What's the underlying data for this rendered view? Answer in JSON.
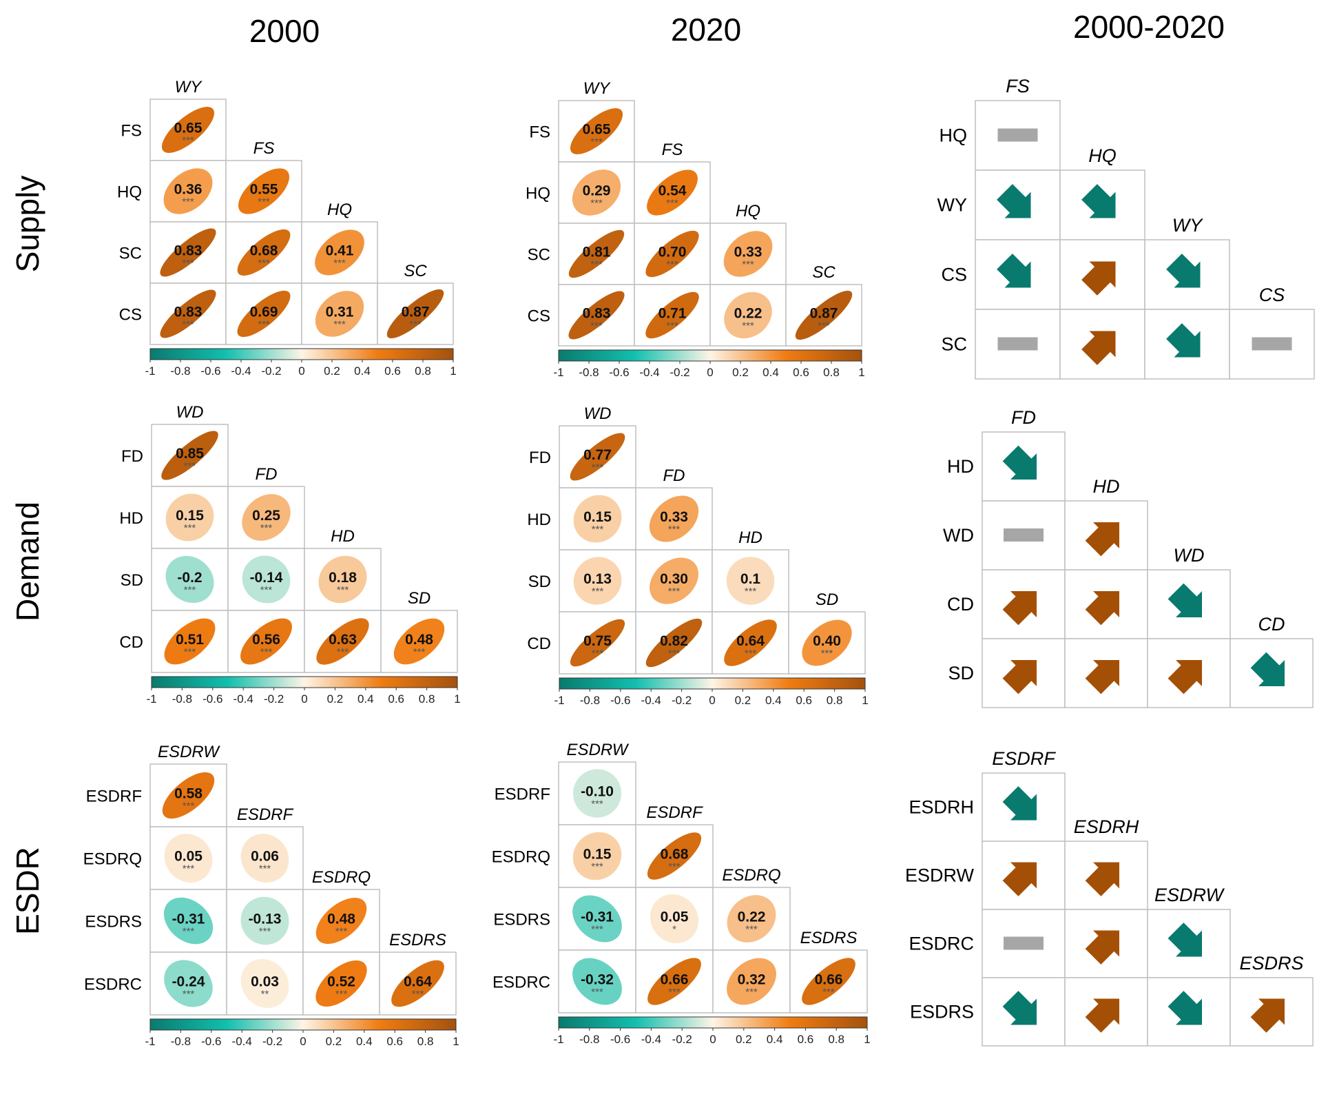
{
  "column_titles": [
    "2000",
    "2020",
    "2000-2020"
  ],
  "row_titles": [
    "Supply",
    "Demand",
    "ESDR"
  ],
  "colors": {
    "negative_strong": "#0a7a6e",
    "negative_mid": "#12bfae",
    "neutral": "#fdf4e6",
    "positive_mid": "#f07c12",
    "positive_strong": "#a4520e",
    "arrow_increase": "#a44f06",
    "arrow_decrease": "#087a6e",
    "no_change": "#a6a6a6",
    "grid_border": "#bfbfbf"
  },
  "colorbar": {
    "range": [
      -1,
      1
    ],
    "ticks": [
      "-1",
      "-0.8",
      "-0.6",
      "-0.4",
      "-0.2",
      "0",
      "0.2",
      "0.4",
      "0.6",
      "0.8",
      "1"
    ]
  },
  "chart_data": [
    {
      "type": "heatmap",
      "title": "2000",
      "group": "Supply",
      "col_vars": [
        "WY",
        "FS",
        "HQ",
        "SC"
      ],
      "row_vars": [
        "FS",
        "HQ",
        "SC",
        "CS"
      ],
      "cells": [
        [
          {
            "r": 0.65,
            "sig": "***"
          }
        ],
        [
          {
            "r": 0.36,
            "sig": "***"
          },
          {
            "r": 0.55,
            "sig": "***"
          }
        ],
        [
          {
            "r": 0.83,
            "sig": "***"
          },
          {
            "r": 0.68,
            "sig": "***"
          },
          {
            "r": 0.41,
            "sig": "***"
          }
        ],
        [
          {
            "r": 0.83,
            "sig": "***"
          },
          {
            "r": 0.69,
            "sig": "***"
          },
          {
            "r": 0.31,
            "sig": "***"
          },
          {
            "r": 0.87,
            "sig": "***"
          }
        ]
      ],
      "labels": [
        [
          "0.65"
        ],
        [
          "0.36",
          "0.55"
        ],
        [
          "0.83",
          "0.68",
          "0.41"
        ],
        [
          "0.83",
          "0.69",
          "0.31",
          "0.87"
        ]
      ]
    },
    {
      "type": "heatmap",
      "title": "2020",
      "group": "Supply",
      "col_vars": [
        "WY",
        "FS",
        "HQ",
        "SC"
      ],
      "row_vars": [
        "FS",
        "HQ",
        "SC",
        "CS"
      ],
      "cells": [
        [
          {
            "r": 0.65,
            "sig": "***"
          }
        ],
        [
          {
            "r": 0.29,
            "sig": "***"
          },
          {
            "r": 0.54,
            "sig": "***"
          }
        ],
        [
          {
            "r": 0.81,
            "sig": "***"
          },
          {
            "r": 0.7,
            "sig": "***"
          },
          {
            "r": 0.33,
            "sig": "***"
          }
        ],
        [
          {
            "r": 0.83,
            "sig": "***"
          },
          {
            "r": 0.71,
            "sig": "***"
          },
          {
            "r": 0.22,
            "sig": "***"
          },
          {
            "r": 0.87,
            "sig": "***"
          }
        ]
      ],
      "labels": [
        [
          "0.65"
        ],
        [
          "0.29",
          "0.54"
        ],
        [
          "0.81",
          "0.70",
          "0.33"
        ],
        [
          "0.83",
          "0.71",
          "0.22",
          "0.87"
        ]
      ]
    },
    {
      "type": "table",
      "title": "2000-2020",
      "group": "Supply",
      "col_vars": [
        "FS",
        "HQ",
        "WY",
        "CS"
      ],
      "row_vars": [
        "HQ",
        "WY",
        "CS",
        "SC"
      ],
      "trend": [
        [
          "none"
        ],
        [
          "down",
          "down"
        ],
        [
          "down",
          "up",
          "down"
        ],
        [
          "none",
          "up",
          "down",
          "none"
        ]
      ]
    },
    {
      "type": "heatmap",
      "title": "2000",
      "group": "Demand",
      "col_vars": [
        "WD",
        "FD",
        "HD",
        "SD"
      ],
      "row_vars": [
        "FD",
        "HD",
        "SD",
        "CD"
      ],
      "cells": [
        [
          {
            "r": 0.85,
            "sig": "***"
          }
        ],
        [
          {
            "r": 0.15,
            "sig": "***"
          },
          {
            "r": 0.25,
            "sig": "***"
          }
        ],
        [
          {
            "r": -0.2,
            "sig": "***"
          },
          {
            "r": -0.14,
            "sig": "***"
          },
          {
            "r": 0.18,
            "sig": "***"
          }
        ],
        [
          {
            "r": 0.51,
            "sig": "***"
          },
          {
            "r": 0.56,
            "sig": "***"
          },
          {
            "r": 0.63,
            "sig": "***"
          },
          {
            "r": 0.48,
            "sig": "***"
          }
        ]
      ],
      "labels": [
        [
          "0.85"
        ],
        [
          "0.15",
          "0.25"
        ],
        [
          "-0.2",
          "-0.14",
          "0.18"
        ],
        [
          "0.51",
          "0.56",
          "0.63",
          "0.48"
        ]
      ]
    },
    {
      "type": "heatmap",
      "title": "2020",
      "group": "Demand",
      "col_vars": [
        "WD",
        "FD",
        "HD",
        "SD"
      ],
      "row_vars": [
        "FD",
        "HD",
        "SD",
        "CD"
      ],
      "cells": [
        [
          {
            "r": 0.77,
            "sig": "***"
          }
        ],
        [
          {
            "r": 0.15,
            "sig": "***"
          },
          {
            "r": 0.33,
            "sig": "***"
          }
        ],
        [
          {
            "r": 0.13,
            "sig": "***"
          },
          {
            "r": 0.3,
            "sig": "***"
          },
          {
            "r": 0.1,
            "sig": "***"
          }
        ],
        [
          {
            "r": 0.75,
            "sig": "***"
          },
          {
            "r": 0.82,
            "sig": "***"
          },
          {
            "r": 0.64,
            "sig": "***"
          },
          {
            "r": 0.4,
            "sig": "***"
          }
        ]
      ],
      "labels": [
        [
          "0.77"
        ],
        [
          "0.15",
          "0.33"
        ],
        [
          "0.13",
          "0.30",
          "0.1"
        ],
        [
          "0.75",
          "0.82",
          "0.64",
          "0.40"
        ]
      ]
    },
    {
      "type": "table",
      "title": "2000-2020",
      "group": "Demand",
      "col_vars": [
        "FD",
        "HD",
        "WD",
        "CD"
      ],
      "row_vars": [
        "HD",
        "WD",
        "CD",
        "SD"
      ],
      "trend": [
        [
          "down"
        ],
        [
          "none",
          "up"
        ],
        [
          "up",
          "up",
          "down"
        ],
        [
          "up",
          "up",
          "up",
          "down"
        ]
      ]
    },
    {
      "type": "heatmap",
      "title": "2000",
      "group": "ESDR",
      "col_vars": [
        "ESDRW",
        "ESDRF",
        "ESDRQ",
        "ESDRS"
      ],
      "row_vars": [
        "ESDRF",
        "ESDRQ",
        "ESDRS",
        "ESDRC"
      ],
      "cells": [
        [
          {
            "r": 0.58,
            "sig": "***"
          }
        ],
        [
          {
            "r": 0.05,
            "sig": "***"
          },
          {
            "r": 0.06,
            "sig": "***"
          }
        ],
        [
          {
            "r": -0.31,
            "sig": "***"
          },
          {
            "r": -0.13,
            "sig": "***"
          },
          {
            "r": 0.48,
            "sig": "***"
          }
        ],
        [
          {
            "r": -0.24,
            "sig": "***"
          },
          {
            "r": 0.03,
            "sig": "**"
          },
          {
            "r": 0.52,
            "sig": "***"
          },
          {
            "r": 0.64,
            "sig": "***"
          }
        ]
      ],
      "labels": [
        [
          "0.58"
        ],
        [
          "0.05",
          "0.06"
        ],
        [
          "-0.31",
          "-0.13",
          "0.48"
        ],
        [
          "-0.24",
          "0.03",
          "0.52",
          "0.64"
        ]
      ]
    },
    {
      "type": "heatmap",
      "title": "2020",
      "group": "ESDR",
      "col_vars": [
        "ESDRW",
        "ESDRF",
        "ESDRQ",
        "ESDRS"
      ],
      "row_vars": [
        "ESDRF",
        "ESDRQ",
        "ESDRS",
        "ESDRC"
      ],
      "cells": [
        [
          {
            "r": -0.1,
            "sig": "***"
          }
        ],
        [
          {
            "r": 0.15,
            "sig": "***"
          },
          {
            "r": 0.68,
            "sig": "***"
          }
        ],
        [
          {
            "r": -0.31,
            "sig": "***"
          },
          {
            "r": 0.05,
            "sig": "*"
          },
          {
            "r": 0.22,
            "sig": "***"
          }
        ],
        [
          {
            "r": -0.32,
            "sig": "***"
          },
          {
            "r": 0.66,
            "sig": "***"
          },
          {
            "r": 0.32,
            "sig": "***"
          },
          {
            "r": 0.66,
            "sig": "***"
          }
        ]
      ],
      "labels": [
        [
          "-0.10"
        ],
        [
          "0.15",
          "0.68"
        ],
        [
          "-0.31",
          "0.05",
          "0.22"
        ],
        [
          "-0.32",
          "0.66",
          "0.32",
          "0.66"
        ]
      ]
    },
    {
      "type": "table",
      "title": "2000-2020",
      "group": "ESDR",
      "col_vars": [
        "ESDRF",
        "ESDRH",
        "ESDRW",
        "ESDRS"
      ],
      "row_vars": [
        "ESDRH",
        "ESDRW",
        "ESDRC",
        "ESDRS"
      ],
      "trend": [
        [
          "down"
        ],
        [
          "up",
          "up"
        ],
        [
          "none",
          "up",
          "down"
        ],
        [
          "down",
          "up",
          "down",
          "up"
        ]
      ]
    }
  ]
}
